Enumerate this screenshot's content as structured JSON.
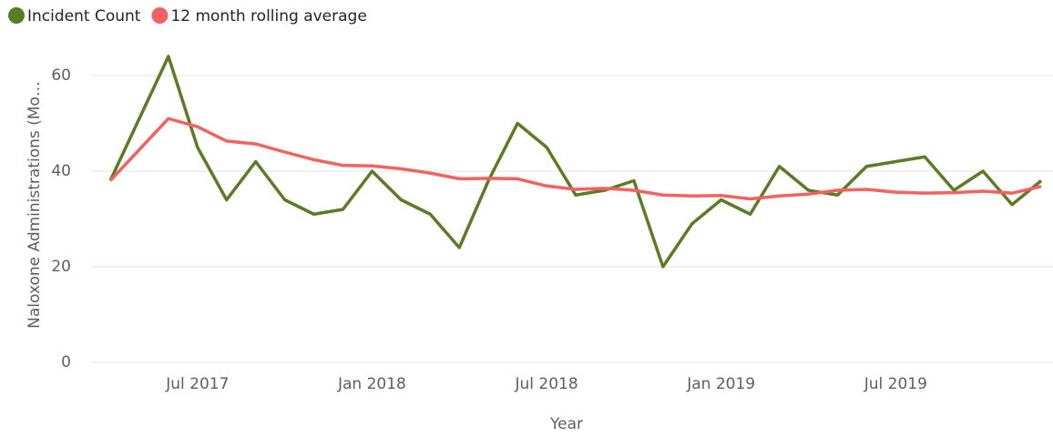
{
  "chart_data": {
    "type": "line",
    "x_label": "Year",
    "y_label": "Naloxone Administrations (Mo…",
    "x": [
      "2017-04",
      "2017-05",
      "2017-06",
      "2017-07",
      "2017-08",
      "2017-09",
      "2017-10",
      "2017-11",
      "2017-12",
      "2018-01",
      "2018-02",
      "2018-03",
      "2018-04",
      "2018-05",
      "2018-06",
      "2018-07",
      "2018-08",
      "2018-09",
      "2018-10",
      "2018-11",
      "2018-12",
      "2019-01",
      "2019-02",
      "2019-03",
      "2019-04",
      "2019-05",
      "2019-06",
      "2019-07",
      "2019-08",
      "2019-09",
      "2019-10",
      "2019-11",
      "2019-12"
    ],
    "series": [
      {
        "name": "Incident Count",
        "color": "#5b7b25",
        "values": [
          38,
          51,
          64,
          45,
          34,
          42,
          34,
          31,
          32,
          40,
          34,
          31,
          24,
          38,
          50,
          45,
          35,
          36,
          38,
          20,
          29,
          34,
          31,
          41,
          36,
          35,
          41,
          42,
          43,
          36,
          40,
          33,
          38
        ]
      },
      {
        "name": "12 month rolling average",
        "color": "#f2625f",
        "values": [
          38,
          44.5,
          51,
          49.3,
          46.3,
          45.7,
          44,
          42.4,
          41.2,
          41.1,
          40.5,
          39.6,
          38.4,
          38.5,
          38.4,
          36.9,
          36.2,
          36.4,
          36,
          35,
          34.8,
          34.9,
          34.2,
          34.8,
          35.2,
          36,
          36.2,
          35.6,
          35.4,
          35.5,
          35.8,
          35.4,
          36.8
        ]
      }
    ],
    "xticks": [
      {
        "value": "2017-07",
        "label": "Jul 2017"
      },
      {
        "value": "2018-01",
        "label": "Jan 2018"
      },
      {
        "value": "2018-07",
        "label": "Jul 2018"
      },
      {
        "value": "2019-01",
        "label": "Jan 2019"
      },
      {
        "value": "2019-07",
        "label": "Jul 2019"
      }
    ],
    "ylim": [
      0,
      66
    ],
    "yticks": [
      0,
      20,
      40,
      60
    ],
    "grid": true,
    "legend": "top-left"
  }
}
